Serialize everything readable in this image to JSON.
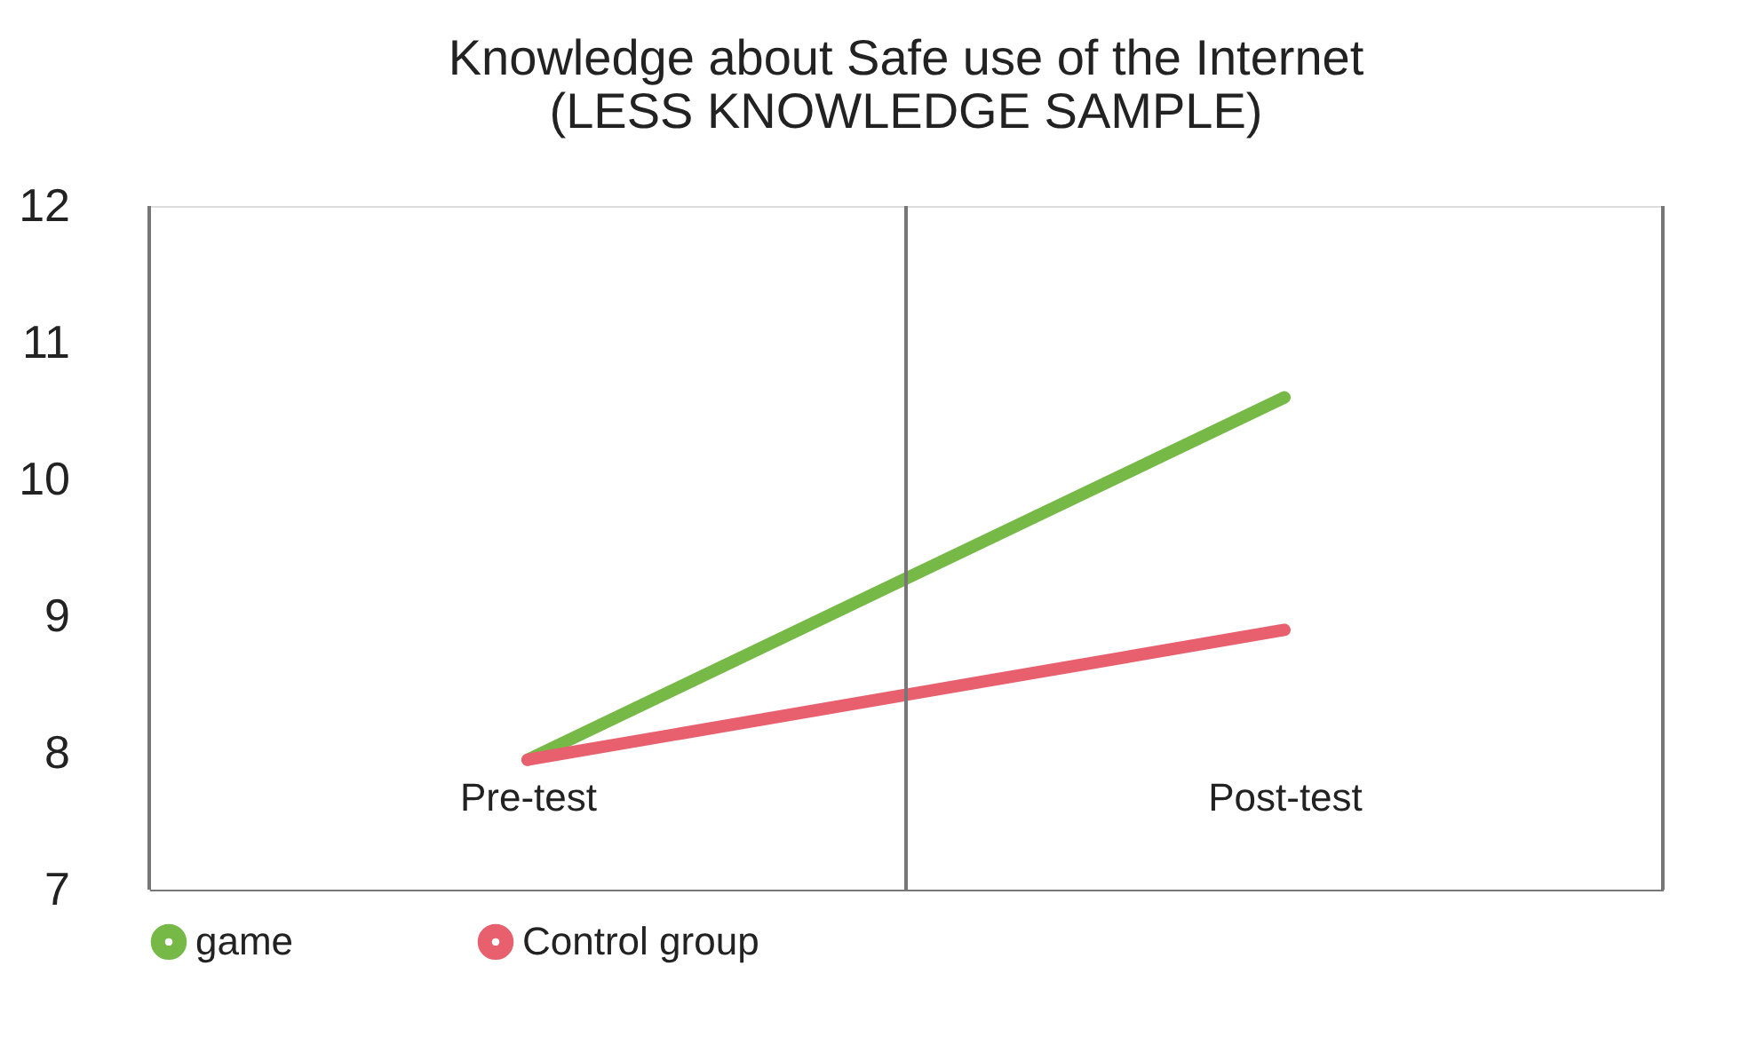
{
  "chart_data": {
    "type": "line",
    "title": [
      "Knowledge about Safe use of the Internet",
      "(LESS KNOWLEDGE SAMPLE)"
    ],
    "categories": [
      "Pre-test",
      "Post-test"
    ],
    "series": [
      {
        "name": "game",
        "color": "#76b947",
        "values": [
          7.95,
          10.6
        ]
      },
      {
        "name": "Control group",
        "color": "#e8606e",
        "values": [
          7.95,
          8.9
        ]
      }
    ],
    "ylim": [
      7,
      12
    ],
    "yticks": [
      7,
      8,
      9,
      10,
      11,
      12
    ],
    "grid": "x",
    "legend": "bottom",
    "marker": "none",
    "line_style": "solid"
  }
}
